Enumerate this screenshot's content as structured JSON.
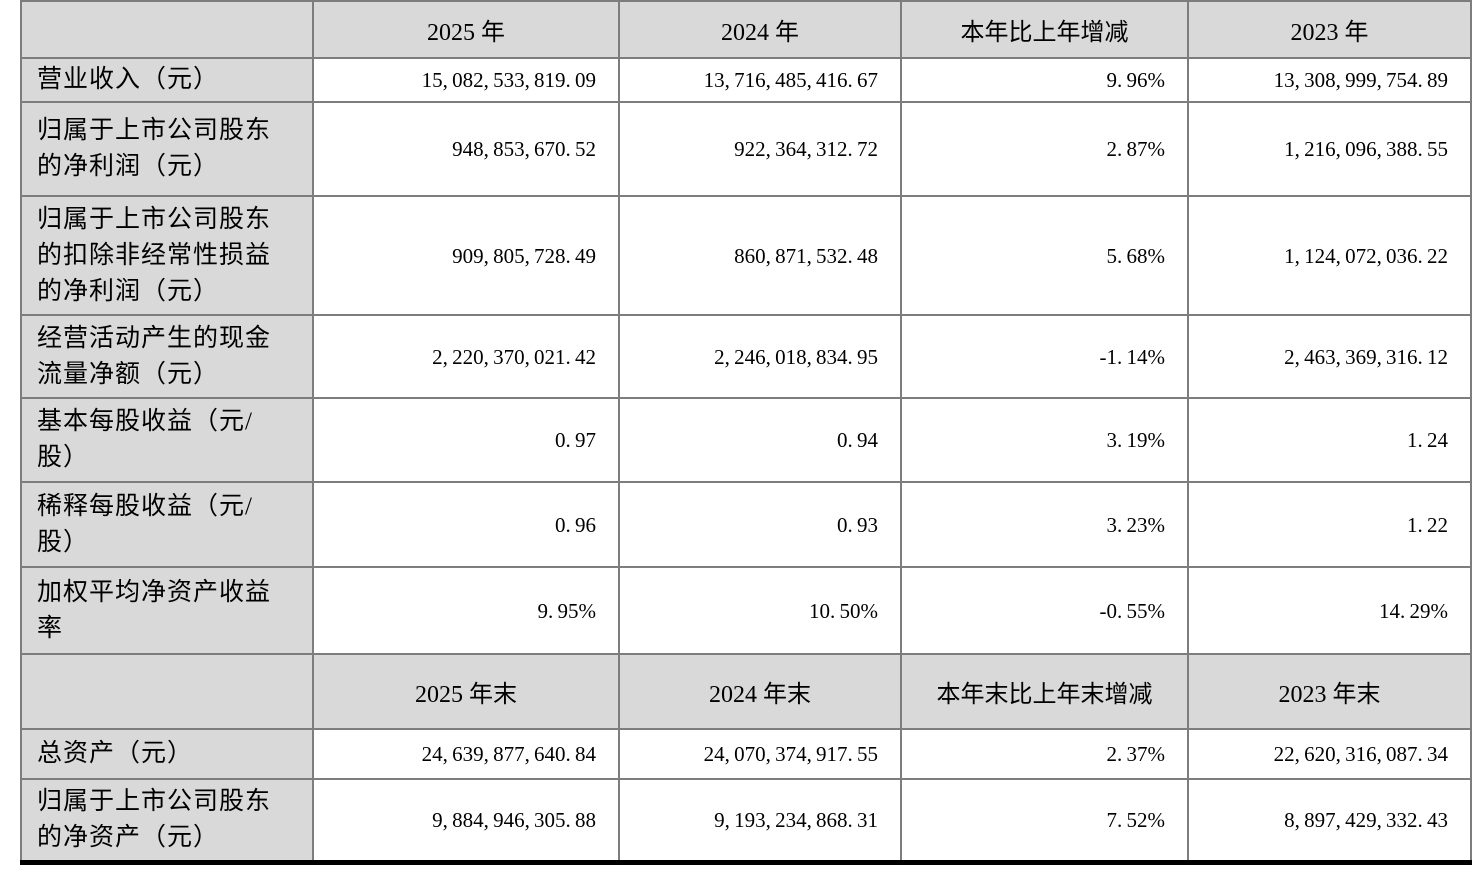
{
  "table": {
    "header_row_1": [
      "",
      "2025 年",
      "2024 年",
      "本年比上年增减",
      "2023 年"
    ],
    "rows_section_1": [
      {
        "label": "营业收入（元）",
        "values": [
          "15,082,533,819.09",
          "13,716,485,416.67",
          "9.96%",
          "13,308,999,754.89"
        ]
      },
      {
        "label": "归属于上市公司股东\n的净利润（元）",
        "values": [
          "948,853,670.52",
          "922,364,312.72",
          "2.87%",
          "1,216,096,388.55"
        ]
      },
      {
        "label": "归属于上市公司股东\n的扣除非经常性损益\n的净利润（元）",
        "values": [
          "909,805,728.49",
          "860,871,532.48",
          "5.68%",
          "1,124,072,036.22"
        ]
      },
      {
        "label": "经营活动产生的现金\n流量净额（元）",
        "values": [
          "2,220,370,021.42",
          "2,246,018,834.95",
          "-1.14%",
          "2,463,369,316.12"
        ]
      },
      {
        "label": "基本每股收益（元/\n股）",
        "values": [
          "0.97",
          "0.94",
          "3.19%",
          "1.24"
        ]
      },
      {
        "label": "稀释每股收益（元/\n股）",
        "values": [
          "0.96",
          "0.93",
          "3.23%",
          "1.22"
        ]
      },
      {
        "label": "加权平均净资产收益\n率",
        "values": [
          "9.95%",
          "10.50%",
          "-0.55%",
          "14.29%"
        ]
      }
    ],
    "header_row_2": [
      "",
      "2025 年末",
      "2024 年末",
      "本年末比上年末增减",
      "2023 年末"
    ],
    "rows_section_2": [
      {
        "label": "总资产（元）",
        "values": [
          "24,639,877,640.84",
          "24,070,374,917.55",
          "2.37%",
          "22,620,316,087.34"
        ]
      },
      {
        "label": "归属于上市公司股东\n的净资产（元）",
        "values": [
          "9,884,946,305.88",
          "9,193,234,868.31",
          "7.52%",
          "8,897,429,332.43"
        ]
      }
    ]
  },
  "colors": {
    "header_bg": "#d9d9d9",
    "label_bg": "#d9d9d9",
    "cell_bg": "#ffffff",
    "grid": "#7d7d7d",
    "bottom_border": "#000000",
    "text": "#000000"
  }
}
